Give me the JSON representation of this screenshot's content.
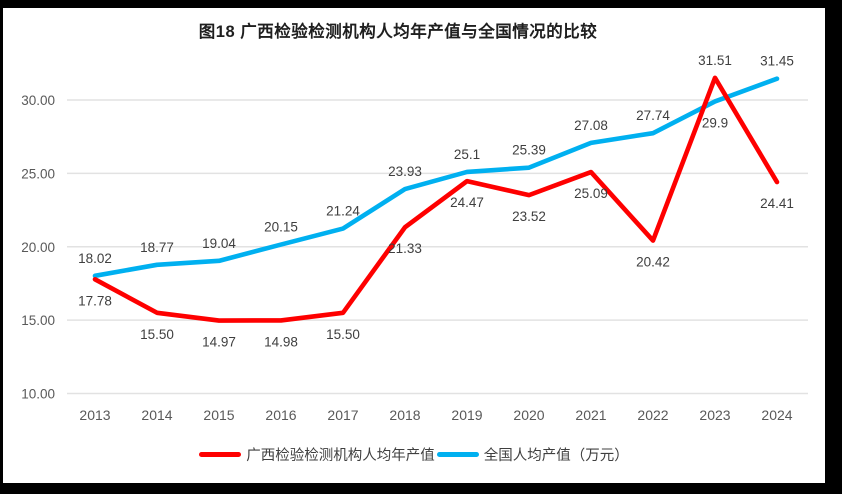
{
  "title": "图18 广西检验检测机构人均年产值与全国情况的比较",
  "chart_data": {
    "type": "line",
    "title": "图18 广西检验检测机构人均年产值与全国情况的比较",
    "categories": [
      "2013",
      "2014",
      "2015",
      "2016",
      "2017",
      "2018",
      "2019",
      "2020",
      "2021",
      "2022",
      "2023",
      "2024"
    ],
    "series": [
      {
        "id": "guangxi",
        "name": "广西检验检测机构人均年产值",
        "color": "#FE0000",
        "values": [
          17.78,
          15.5,
          14.97,
          14.98,
          15.5,
          21.33,
          24.47,
          23.52,
          25.09,
          20.42,
          31.51,
          24.41
        ],
        "labels": [
          "17.78",
          "15.50",
          "14.97",
          "14.98",
          "15.50",
          "21.33",
          "24.47",
          "23.52",
          "25.09",
          "20.42",
          "31.51",
          "24.41"
        ],
        "label_default": "below",
        "label_overrides": {
          "10": "above"
        }
      },
      {
        "id": "national",
        "name": "全国人均产值（万元）",
        "color": "#00B0F0",
        "values": [
          18.02,
          18.77,
          19.04,
          20.15,
          21.24,
          23.93,
          25.1,
          25.39,
          27.08,
          27.74,
          29.9,
          31.45
        ],
        "labels": [
          "18.02",
          "18.77",
          "19.04",
          "20.15",
          "21.24",
          "23.93",
          "25.1",
          "25.39",
          "27.08",
          "27.74",
          "29.9",
          "31.45"
        ],
        "label_default": "above",
        "label_overrides": {
          "10": "below"
        }
      }
    ],
    "y_axis": {
      "tick_labels": [
        "30.00",
        "25.00",
        "20.00",
        "15.00",
        "10.00"
      ],
      "tick_values": [
        30,
        25,
        20,
        15,
        10
      ],
      "min": 10,
      "max": 32,
      "grid": true
    },
    "x_axis": {
      "labels": [
        "2013",
        "2014",
        "2015",
        "2016",
        "2017",
        "2018",
        "2019",
        "2020",
        "2021",
        "2022",
        "2023",
        "2024"
      ]
    },
    "legend_position": "bottom",
    "grid_color": "#E2E2E2",
    "axis_text_color": "#595959",
    "data_label_color": "#3f3f3f"
  }
}
